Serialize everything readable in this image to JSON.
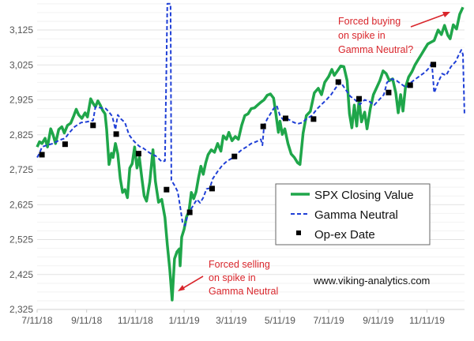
{
  "chart_data": {
    "type": "line",
    "title": "",
    "xlabel": "",
    "ylabel": "",
    "x_units": "days since 7/11/18",
    "xlim": [
      0,
      535
    ],
    "ylim": [
      2325,
      3200
    ],
    "grid": true,
    "x_ticks": [
      {
        "day": 0,
        "label": "7/11/18"
      },
      {
        "day": 62,
        "label": "9/11/18"
      },
      {
        "day": 123,
        "label": "11/11/18"
      },
      {
        "day": 184,
        "label": "1/11/19"
      },
      {
        "day": 243,
        "label": "3/11/19"
      },
      {
        "day": 304,
        "label": "5/11/19"
      },
      {
        "day": 365,
        "label": "7/11/19"
      },
      {
        "day": 427,
        "label": "9/11/19"
      },
      {
        "day": 488,
        "label": "11/11/19"
      }
    ],
    "y_ticks": [
      {
        "value": 2325,
        "label": "2,325"
      },
      {
        "value": 2425,
        "label": "2,425"
      },
      {
        "value": 2525,
        "label": "2,525"
      },
      {
        "value": 2625,
        "label": "2,625"
      },
      {
        "value": 2725,
        "label": "2,725"
      },
      {
        "value": 2825,
        "label": "2,825"
      },
      {
        "value": 2925,
        "label": "2,925"
      },
      {
        "value": 3025,
        "label": "3,025"
      },
      {
        "value": 3125,
        "label": "3,125"
      }
    ],
    "series": [
      {
        "name": "SPX Closing Value",
        "style": "solid",
        "color": "#1fa64a",
        "points": [
          [
            0,
            2790
          ],
          [
            3,
            2805
          ],
          [
            6,
            2800
          ],
          [
            10,
            2815
          ],
          [
            13,
            2790
          ],
          [
            17,
            2842
          ],
          [
            20,
            2825
          ],
          [
            23,
            2800
          ],
          [
            27,
            2840
          ],
          [
            31,
            2848
          ],
          [
            34,
            2830
          ],
          [
            38,
            2852
          ],
          [
            42,
            2858
          ],
          [
            46,
            2880
          ],
          [
            49,
            2898
          ],
          [
            52,
            2882
          ],
          [
            56,
            2872
          ],
          [
            60,
            2888
          ],
          [
            63,
            2876
          ],
          [
            67,
            2928
          ],
          [
            70,
            2915
          ],
          [
            73,
            2905
          ],
          [
            76,
            2922
          ],
          [
            79,
            2910
          ],
          [
            82,
            2895
          ],
          [
            85,
            2885
          ],
          [
            87,
            2840
          ],
          [
            90,
            2740
          ],
          [
            93,
            2772
          ],
          [
            95,
            2760
          ],
          [
            98,
            2800
          ],
          [
            101,
            2770
          ],
          [
            104,
            2700
          ],
          [
            107,
            2660
          ],
          [
            110,
            2668
          ],
          [
            113,
            2645
          ],
          [
            116,
            2730
          ],
          [
            119,
            2742
          ],
          [
            122,
            2790
          ],
          [
            125,
            2730
          ],
          [
            128,
            2760
          ],
          [
            131,
            2702
          ],
          [
            134,
            2650
          ],
          [
            137,
            2635
          ],
          [
            141,
            2690
          ],
          [
            145,
            2782
          ],
          [
            148,
            2692
          ],
          [
            152,
            2632
          ],
          [
            156,
            2640
          ],
          [
            160,
            2588
          ],
          [
            163,
            2510
          ],
          [
            166,
            2440
          ],
          [
            169,
            2352
          ],
          [
            172,
            2470
          ],
          [
            175,
            2490
          ],
          [
            178,
            2498
          ],
          [
            179,
            2450
          ],
          [
            181,
            2532
          ],
          [
            184,
            2555
          ],
          [
            187,
            2590
          ],
          [
            190,
            2605
          ],
          [
            193,
            2660
          ],
          [
            196,
            2642
          ],
          [
            199,
            2662
          ],
          [
            202,
            2702
          ],
          [
            205,
            2735
          ],
          [
            208,
            2712
          ],
          [
            211,
            2745
          ],
          [
            214,
            2768
          ],
          [
            218,
            2782
          ],
          [
            222,
            2775
          ],
          [
            226,
            2800
          ],
          [
            230,
            2778
          ],
          [
            233,
            2822
          ],
          [
            237,
            2812
          ],
          [
            240,
            2832
          ],
          [
            244,
            2808
          ],
          [
            248,
            2820
          ],
          [
            252,
            2812
          ],
          [
            256,
            2852
          ],
          [
            260,
            2880
          ],
          [
            264,
            2885
          ],
          [
            268,
            2900
          ],
          [
            272,
            2902
          ],
          [
            276,
            2910
          ],
          [
            280,
            2918
          ],
          [
            284,
            2925
          ],
          [
            288,
            2938
          ],
          [
            292,
            2942
          ],
          [
            296,
            2930
          ],
          [
            299,
            2882
          ],
          [
            302,
            2832
          ],
          [
            304,
            2864
          ],
          [
            307,
            2826
          ],
          [
            310,
            2842
          ],
          [
            314,
            2800
          ],
          [
            318,
            2770
          ],
          [
            322,
            2760
          ],
          [
            326,
            2745
          ],
          [
            329,
            2740
          ],
          [
            333,
            2830
          ],
          [
            337,
            2880
          ],
          [
            342,
            2892
          ],
          [
            347,
            2945
          ],
          [
            352,
            2958
          ],
          [
            356,
            2940
          ],
          [
            360,
            2975
          ],
          [
            365,
            2992
          ],
          [
            369,
            3012
          ],
          [
            372,
            2995
          ],
          [
            376,
            3008
          ],
          [
            380,
            3022
          ],
          [
            384,
            3020
          ],
          [
            388,
            2980
          ],
          [
            391,
            2885
          ],
          [
            394,
            2845
          ],
          [
            397,
            2910
          ],
          [
            400,
            2850
          ],
          [
            403,
            2924
          ],
          [
            406,
            2862
          ],
          [
            410,
            2890
          ],
          [
            413,
            2842
          ],
          [
            417,
            2900
          ],
          [
            421,
            2940
          ],
          [
            425,
            2960
          ],
          [
            429,
            2980
          ],
          [
            433,
            3008
          ],
          [
            437,
            3000
          ],
          [
            441,
            2980
          ],
          [
            445,
            2985
          ],
          [
            449,
            2945
          ],
          [
            452,
            2888
          ],
          [
            455,
            2940
          ],
          [
            458,
            2893
          ],
          [
            461,
            2960
          ],
          [
            465,
            2990
          ],
          [
            469,
            3005
          ],
          [
            473,
            3025
          ],
          [
            477,
            3040
          ],
          [
            481,
            3055
          ],
          [
            485,
            3070
          ],
          [
            489,
            3085
          ],
          [
            493,
            3090
          ],
          [
            497,
            3095
          ],
          [
            502,
            3125
          ],
          [
            506,
            3112
          ],
          [
            510,
            3138
          ],
          [
            514,
            3110
          ],
          [
            517,
            3100
          ],
          [
            521,
            3140
          ],
          [
            525,
            3128
          ],
          [
            529,
            3170
          ],
          [
            533,
            3190
          ]
        ]
      },
      {
        "name": "Gamma Neutral",
        "style": "dashed",
        "color": "#1f3fd6",
        "points": [
          [
            0,
            2760
          ],
          [
            3,
            2772
          ],
          [
            6,
            2790
          ],
          [
            12,
            2795
          ],
          [
            20,
            2800
          ],
          [
            28,
            2810
          ],
          [
            35,
            2815
          ],
          [
            40,
            2830
          ],
          [
            47,
            2848
          ],
          [
            55,
            2860
          ],
          [
            62,
            2862
          ],
          [
            70,
            2866
          ],
          [
            73,
            2905
          ],
          [
            80,
            2902
          ],
          [
            86,
            2900
          ],
          [
            90,
            2890
          ],
          [
            94,
            2878
          ],
          [
            98,
            2840
          ],
          [
            101,
            2882
          ],
          [
            105,
            2870
          ],
          [
            110,
            2860
          ],
          [
            115,
            2825
          ],
          [
            120,
            2810
          ],
          [
            124,
            2800
          ],
          [
            128,
            2792
          ],
          [
            132,
            2788
          ],
          [
            138,
            2778
          ],
          [
            143,
            2770
          ],
          [
            148,
            2765
          ],
          [
            152,
            2757
          ],
          [
            156,
            2748
          ],
          [
            160,
            2750
          ],
          [
            162,
            3040
          ],
          [
            163,
            3200
          ],
          [
            167,
            3200
          ],
          [
            168,
            2695
          ],
          [
            172,
            2680
          ],
          [
            176,
            2662
          ],
          [
            179,
            2620
          ],
          [
            182,
            2575
          ],
          [
            185,
            2565
          ],
          [
            188,
            2590
          ],
          [
            192,
            2610
          ],
          [
            196,
            2625
          ],
          [
            200,
            2640
          ],
          [
            204,
            2630
          ],
          [
            208,
            2645
          ],
          [
            212,
            2670
          ],
          [
            216,
            2672
          ],
          [
            220,
            2700
          ],
          [
            226,
            2720
          ],
          [
            232,
            2738
          ],
          [
            238,
            2750
          ],
          [
            244,
            2758
          ],
          [
            250,
            2770
          ],
          [
            256,
            2782
          ],
          [
            262,
            2790
          ],
          [
            268,
            2800
          ],
          [
            274,
            2805
          ],
          [
            280,
            2812
          ],
          [
            282,
            2795
          ],
          [
            284,
            2850
          ],
          [
            288,
            2870
          ],
          [
            292,
            2885
          ],
          [
            296,
            2900
          ],
          [
            300,
            2908
          ],
          [
            304,
            2880
          ],
          [
            308,
            2868
          ],
          [
            314,
            2870
          ],
          [
            320,
            2862
          ],
          [
            326,
            2856
          ],
          [
            332,
            2860
          ],
          [
            338,
            2872
          ],
          [
            344,
            2880
          ],
          [
            350,
            2898
          ],
          [
            356,
            2912
          ],
          [
            362,
            2925
          ],
          [
            368,
            2940
          ],
          [
            374,
            2960
          ],
          [
            380,
            2975
          ],
          [
            386,
            2955
          ],
          [
            392,
            2935
          ],
          [
            398,
            2925
          ],
          [
            404,
            2912
          ],
          [
            410,
            2925
          ],
          [
            416,
            2920
          ],
          [
            422,
            2910
          ],
          [
            428,
            2925
          ],
          [
            434,
            2940
          ],
          [
            438,
            2975
          ],
          [
            444,
            2985
          ],
          [
            450,
            2980
          ],
          [
            456,
            2970
          ],
          [
            462,
            2960
          ],
          [
            468,
            2975
          ],
          [
            474,
            2985
          ],
          [
            480,
            2995
          ],
          [
            486,
            3005
          ],
          [
            492,
            3020
          ],
          [
            494,
            3035
          ],
          [
            497,
            2945
          ],
          [
            502,
            2975
          ],
          [
            507,
            3000
          ],
          [
            512,
            2995
          ],
          [
            518,
            3020
          ],
          [
            524,
            3035
          ],
          [
            528,
            3055
          ],
          [
            531,
            3068
          ],
          [
            533,
            3055
          ],
          [
            535,
            2880
          ]
        ]
      }
    ],
    "opex_markers": {
      "name": "Op-ex Date",
      "color": "#000000",
      "points": [
        [
          6,
          2768
        ],
        [
          35,
          2798
        ],
        [
          70,
          2852
        ],
        [
          99,
          2827
        ],
        [
          127,
          2771
        ],
        [
          162,
          2668
        ],
        [
          191,
          2603
        ],
        [
          219,
          2671
        ],
        [
          247,
          2763
        ],
        [
          283,
          2849
        ],
        [
          311,
          2872
        ],
        [
          346,
          2870
        ],
        [
          377,
          2976
        ],
        [
          403,
          2928
        ],
        [
          440,
          2946
        ],
        [
          467,
          2967
        ],
        [
          496,
          3026
        ]
      ]
    },
    "legend": {
      "placement": "center-right",
      "entries": [
        "SPX Closing Value",
        "Gamma Neutral",
        "Op-ex Date"
      ]
    },
    "annotations": {
      "buying": [
        "Forced buying",
        "on spike in",
        "Gamma Neutral?"
      ],
      "selling": [
        "Forced selling",
        "on spike in",
        "Gamma Neutral"
      ]
    },
    "annotation_color": "#d9262c",
    "watermark": "www.viking-analytics.com"
  }
}
